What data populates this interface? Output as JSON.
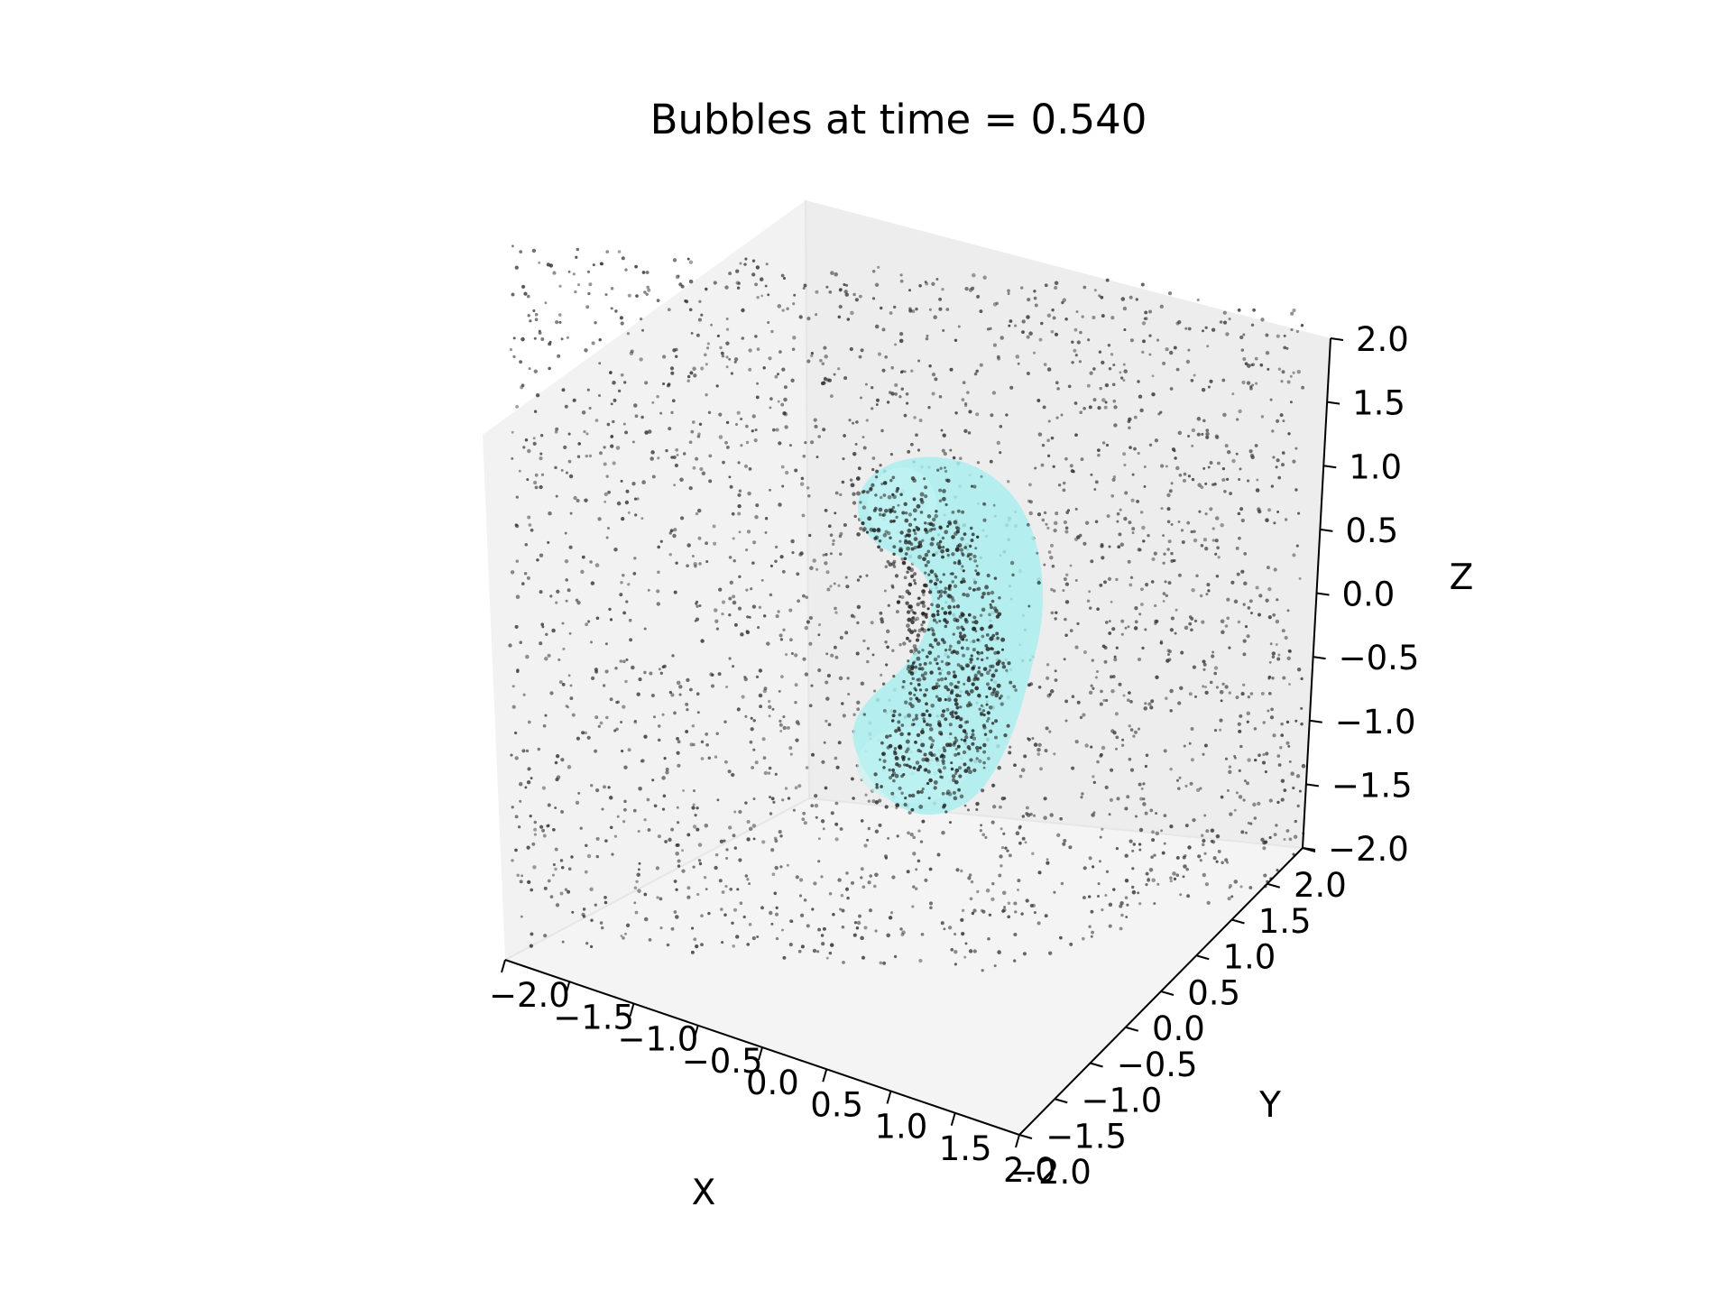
{
  "chart_data": {
    "type": "scatter3d",
    "title": "Bubbles at time = 0.540",
    "xlabel": "X",
    "ylabel": "Y",
    "zlabel": "Z",
    "xlim": [
      -2.0,
      2.0
    ],
    "ylim": [
      -2.0,
      2.0
    ],
    "zlim": [
      -2.0,
      2.0
    ],
    "xticks": [
      "−2.0",
      "−1.5",
      "−1.0",
      "−0.5",
      "0.0",
      "0.5",
      "1.0",
      "1.5",
      "2.0"
    ],
    "yticks": [
      "−2.0",
      "−1.5",
      "−1.0",
      "−0.5",
      "0.0",
      "0.5",
      "1.0",
      "1.5",
      "2.0"
    ],
    "zticks": [
      "−2.0",
      "−1.5",
      "−1.0",
      "−0.5",
      "0.0",
      "0.5",
      "1.0",
      "1.5",
      "2.0"
    ],
    "grid": false,
    "series": [
      {
        "kind": "point-cloud",
        "color": "#333333",
        "distribution": "uniform in cube"
      },
      {
        "kind": "surface",
        "color": "#a8eeee",
        "shape": "curved tube"
      }
    ]
  }
}
